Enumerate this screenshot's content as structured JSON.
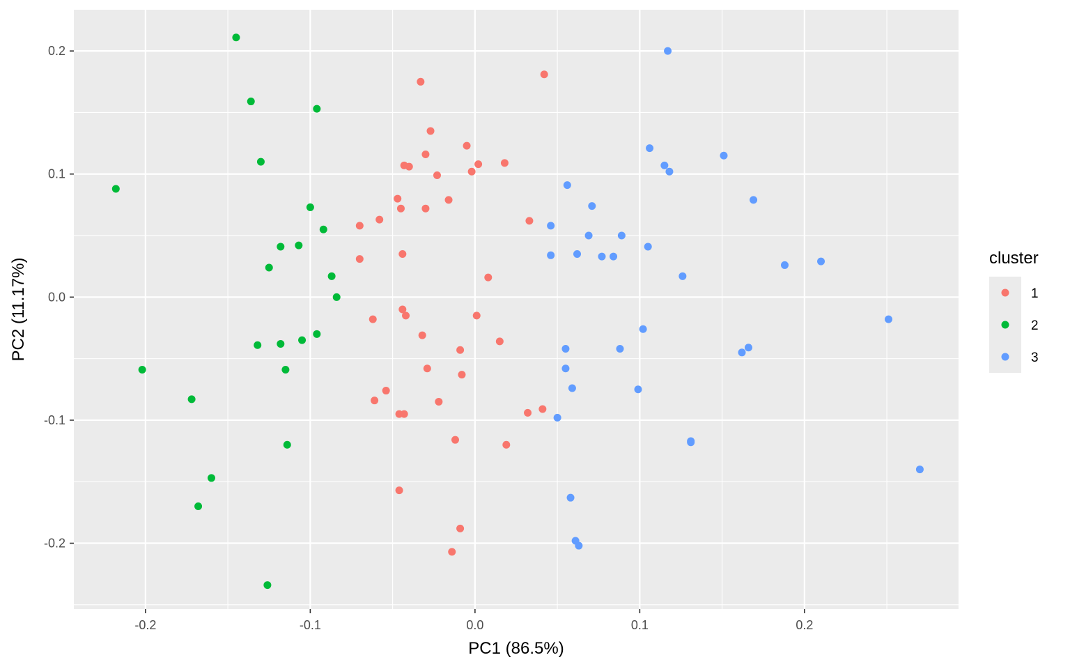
{
  "chart_data": {
    "type": "scatter",
    "xlabel": "PC1 (86.5%)",
    "ylabel": "PC2 (11.17%)",
    "xlim": [
      -0.2435,
      0.2935
    ],
    "ylim": [
      -0.2535,
      0.2335
    ],
    "x_ticks": [
      -0.2,
      -0.1,
      0.0,
      0.1,
      0.2
    ],
    "x_tick_labels": [
      "-0.2",
      "-0.1",
      "0.0",
      "0.1",
      "0.2"
    ],
    "y_ticks": [
      -0.2,
      -0.1,
      0.0,
      0.1,
      0.2
    ],
    "y_tick_labels": [
      "-0.2",
      "-0.1",
      "0.0",
      "0.1",
      "0.2"
    ],
    "grid": true,
    "legend": {
      "title": "cluster",
      "position": "right"
    },
    "series": [
      {
        "name": "1",
        "color": "#F8766D",
        "points": [
          [
            -0.033,
            0.175
          ],
          [
            0.042,
            0.181
          ],
          [
            -0.027,
            0.135
          ],
          [
            -0.005,
            0.123
          ],
          [
            -0.03,
            0.116
          ],
          [
            0.002,
            0.108
          ],
          [
            0.018,
            0.109
          ],
          [
            -0.043,
            0.107
          ],
          [
            -0.04,
            0.106
          ],
          [
            -0.023,
            0.099
          ],
          [
            -0.002,
            0.102
          ],
          [
            -0.047,
            0.08
          ],
          [
            -0.016,
            0.079
          ],
          [
            -0.045,
            0.072
          ],
          [
            -0.03,
            0.072
          ],
          [
            -0.058,
            0.063
          ],
          [
            -0.07,
            0.058
          ],
          [
            0.033,
            0.062
          ],
          [
            -0.044,
            0.035
          ],
          [
            -0.07,
            0.031
          ],
          [
            0.008,
            0.016
          ],
          [
            -0.044,
            -0.01
          ],
          [
            -0.042,
            -0.015
          ],
          [
            0.001,
            -0.015
          ],
          [
            -0.062,
            -0.018
          ],
          [
            -0.032,
            -0.031
          ],
          [
            0.015,
            -0.036
          ],
          [
            -0.009,
            -0.043
          ],
          [
            -0.029,
            -0.058
          ],
          [
            -0.008,
            -0.063
          ],
          [
            -0.054,
            -0.076
          ],
          [
            -0.061,
            -0.084
          ],
          [
            -0.022,
            -0.085
          ],
          [
            -0.046,
            -0.095
          ],
          [
            -0.043,
            -0.095
          ],
          [
            0.032,
            -0.094
          ],
          [
            0.041,
            -0.091
          ],
          [
            -0.012,
            -0.116
          ],
          [
            0.019,
            -0.12
          ],
          [
            -0.046,
            -0.157
          ],
          [
            -0.009,
            -0.188
          ],
          [
            -0.014,
            -0.207
          ]
        ]
      },
      {
        "name": "2",
        "color": "#00BA38",
        "points": [
          [
            -0.145,
            0.211
          ],
          [
            -0.136,
            0.159
          ],
          [
            -0.096,
            0.153
          ],
          [
            -0.13,
            0.11
          ],
          [
            -0.218,
            0.088
          ],
          [
            -0.1,
            0.073
          ],
          [
            -0.092,
            0.055
          ],
          [
            -0.118,
            0.041
          ],
          [
            -0.107,
            0.042
          ],
          [
            -0.125,
            0.024
          ],
          [
            -0.087,
            0.017
          ],
          [
            -0.084,
            0.0
          ],
          [
            -0.096,
            -0.03
          ],
          [
            -0.105,
            -0.035
          ],
          [
            -0.118,
            -0.038
          ],
          [
            -0.132,
            -0.039
          ],
          [
            -0.115,
            -0.059
          ],
          [
            -0.202,
            -0.059
          ],
          [
            -0.172,
            -0.083
          ],
          [
            -0.114,
            -0.12
          ],
          [
            -0.16,
            -0.147
          ],
          [
            -0.168,
            -0.17
          ],
          [
            -0.126,
            -0.234
          ]
        ]
      },
      {
        "name": "3",
        "color": "#619CFF",
        "points": [
          [
            0.117,
            0.2
          ],
          [
            0.106,
            0.121
          ],
          [
            0.151,
            0.115
          ],
          [
            0.115,
            0.107
          ],
          [
            0.118,
            0.102
          ],
          [
            0.056,
            0.091
          ],
          [
            0.169,
            0.079
          ],
          [
            0.071,
            0.074
          ],
          [
            0.046,
            0.058
          ],
          [
            0.069,
            0.05
          ],
          [
            0.089,
            0.05
          ],
          [
            0.105,
            0.041
          ],
          [
            0.046,
            0.034
          ],
          [
            0.062,
            0.035
          ],
          [
            0.077,
            0.033
          ],
          [
            0.084,
            0.033
          ],
          [
            0.188,
            0.026
          ],
          [
            0.21,
            0.029
          ],
          [
            0.126,
            0.017
          ],
          [
            0.251,
            -0.018
          ],
          [
            0.102,
            -0.026
          ],
          [
            0.166,
            -0.041
          ],
          [
            0.162,
            -0.045
          ],
          [
            0.055,
            -0.042
          ],
          [
            0.088,
            -0.042
          ],
          [
            0.055,
            -0.058
          ],
          [
            0.059,
            -0.074
          ],
          [
            0.099,
            -0.075
          ],
          [
            0.05,
            -0.098
          ],
          [
            0.131,
            -0.117
          ],
          [
            0.131,
            -0.118
          ],
          [
            0.27,
            -0.14
          ],
          [
            0.058,
            -0.163
          ],
          [
            0.061,
            -0.198
          ],
          [
            0.063,
            -0.202
          ]
        ]
      }
    ]
  }
}
